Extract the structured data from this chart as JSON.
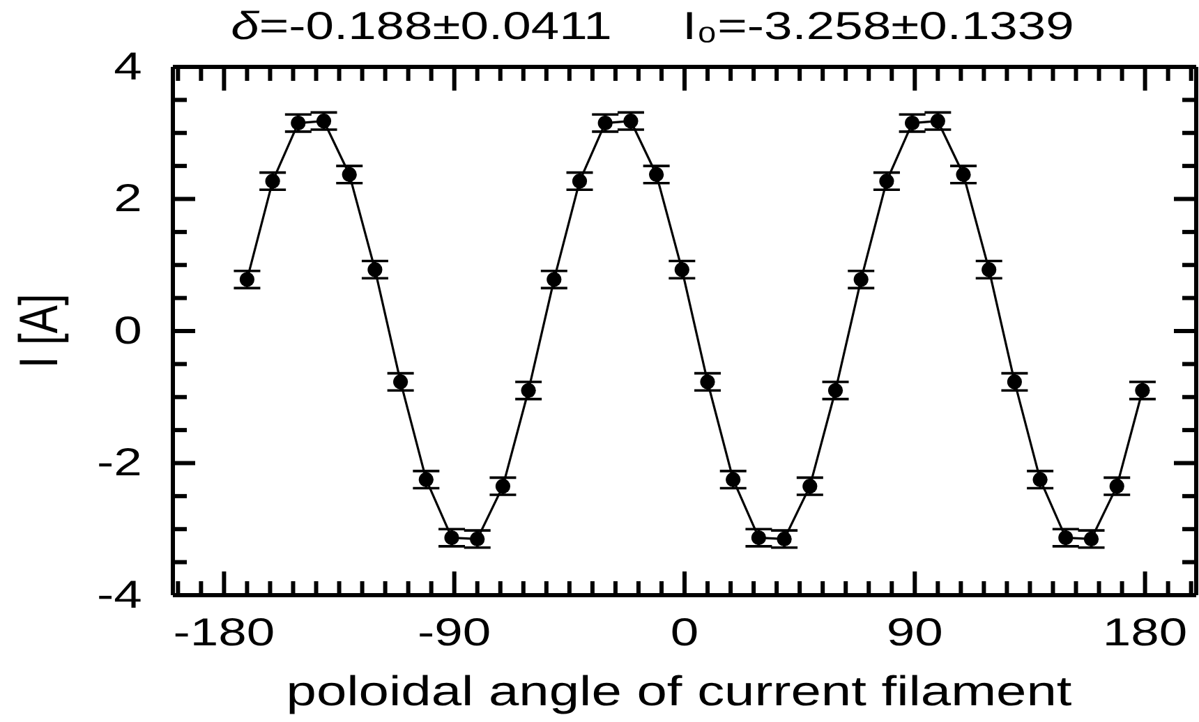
{
  "chart_data": {
    "type": "line",
    "title": "δ=-0.188±0.0411     I₀=-3.258±0.1339",
    "xlabel": "poloidal angle of current filament",
    "ylabel": "I [A]",
    "x": [
      -171,
      -161,
      -151,
      -141,
      -131,
      -121,
      -111,
      -101,
      -91,
      -81,
      -71,
      -61,
      -51,
      -41,
      -31,
      -21,
      -11,
      -1,
      9,
      19,
      29,
      39,
      49,
      59,
      69,
      79,
      89,
      99,
      109,
      119,
      129,
      139,
      149,
      159,
      169,
      179
    ],
    "values": [
      0.78,
      2.27,
      3.15,
      3.18,
      2.37,
      0.93,
      -0.77,
      -2.25,
      -3.13,
      -3.15,
      -2.35,
      -0.9,
      0.78,
      2.27,
      3.15,
      3.18,
      2.37,
      0.93,
      -0.77,
      -2.25,
      -3.13,
      -3.15,
      -2.35,
      -0.9,
      0.78,
      2.27,
      3.15,
      3.18,
      2.37,
      0.93,
      -0.77,
      -2.25,
      -3.13,
      -3.15,
      -2.35,
      -0.9
    ],
    "errors": [
      0.13,
      0.13,
      0.13,
      0.13,
      0.13,
      0.13,
      0.13,
      0.13,
      0.13,
      0.13,
      0.13,
      0.13,
      0.13,
      0.13,
      0.13,
      0.13,
      0.13,
      0.13,
      0.13,
      0.13,
      0.13,
      0.13,
      0.13,
      0.13,
      0.13,
      0.13,
      0.13,
      0.13,
      0.13,
      0.13,
      0.13,
      0.13,
      0.13,
      0.13,
      0.13,
      0.13
    ],
    "color": "#000000",
    "marker": "circle",
    "line_style": "solid",
    "xlim": [
      -200,
      200
    ],
    "xticks": [
      {
        "value": -198,
        "label": null
      },
      {
        "value": -189,
        "label": null
      },
      -180,
      {
        "value": -171,
        "label": null
      },
      {
        "value": -162,
        "label": null
      },
      {
        "value": -153,
        "label": null
      },
      {
        "value": -144,
        "label": null
      },
      {
        "value": -135,
        "label": null
      },
      {
        "value": -126,
        "label": null
      },
      {
        "value": -117,
        "label": null
      },
      {
        "value": -108,
        "label": null
      },
      {
        "value": -99,
        "label": null
      },
      -90,
      {
        "value": -81,
        "label": null
      },
      {
        "value": -72,
        "label": null
      },
      {
        "value": -63,
        "label": null
      },
      {
        "value": -54,
        "label": null
      },
      {
        "value": -45,
        "label": null
      },
      {
        "value": -36,
        "label": null
      },
      {
        "value": -27,
        "label": null
      },
      {
        "value": -18,
        "label": null
      },
      {
        "value": -9,
        "label": null
      },
      0,
      {
        "value": 9,
        "label": null
      },
      {
        "value": 18,
        "label": null
      },
      {
        "value": 27,
        "label": null
      },
      {
        "value": 36,
        "label": null
      },
      {
        "value": 45,
        "label": null
      },
      {
        "value": 54,
        "label": null
      },
      {
        "value": 63,
        "label": null
      },
      {
        "value": 72,
        "label": null
      },
      {
        "value": 81,
        "label": null
      },
      90,
      {
        "value": 99,
        "label": null
      },
      {
        "value": 108,
        "label": null
      },
      {
        "value": 117,
        "label": null
      },
      {
        "value": 126,
        "label": null
      },
      {
        "value": 135,
        "label": null
      },
      {
        "value": 144,
        "label": null
      },
      {
        "value": 153,
        "label": null
      },
      {
        "value": 162,
        "label": null
      },
      {
        "value": 171,
        "label": null
      },
      180,
      {
        "value": 189,
        "label": null
      },
      {
        "value": 198,
        "label": null
      }
    ],
    "ylim": [
      -4,
      4
    ],
    "yticks": [
      -4,
      {
        "value": -3.5,
        "label": null
      },
      {
        "value": -3,
        "label": null
      },
      {
        "value": -2.5,
        "label": null
      },
      -2,
      {
        "value": -1.5,
        "label": null
      },
      {
        "value": -1,
        "label": null
      },
      {
        "value": -0.5,
        "label": null
      },
      0,
      {
        "value": 0.5,
        "label": null
      },
      {
        "value": 1,
        "label": null
      },
      {
        "value": 1.5,
        "label": null
      },
      2,
      {
        "value": 2.5,
        "label": null
      },
      {
        "value": 3,
        "label": null
      },
      {
        "value": 3.5,
        "label": null
      },
      4
    ]
  }
}
